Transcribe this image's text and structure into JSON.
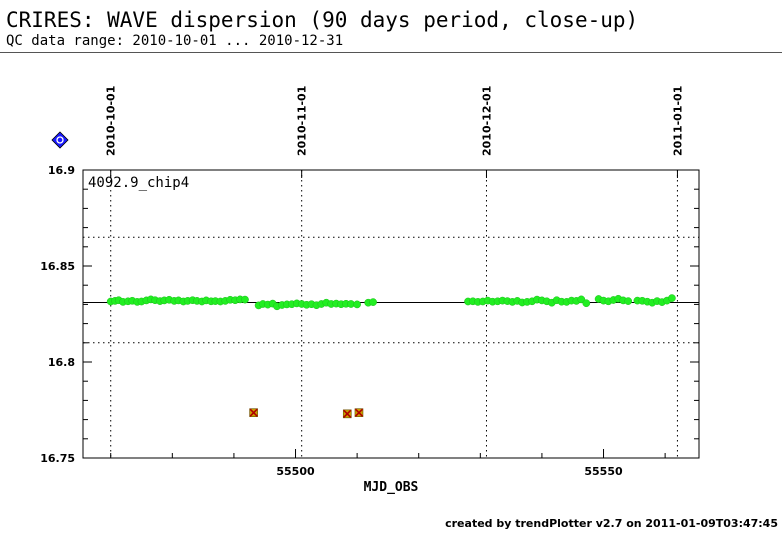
{
  "header": {
    "title": "CRIRES: WAVE dispersion (90 days period, close-up)",
    "subtitle": "QC data range: 2010-10-01 ... 2010-12-31"
  },
  "footer": {
    "credit": "created by trendPlotter v2.7 on 2011-01-09T03:47:45"
  },
  "chart_data": {
    "type": "scatter",
    "title": "",
    "xlabel": "MJD_OBS",
    "ylabel": "",
    "panel_label": "4092.9_chip4",
    "xlim": [
      55465.5,
      55565.5
    ],
    "ylim": [
      16.75,
      16.9
    ],
    "x_ticks": [
      55500,
      55550
    ],
    "x_tick_labels": [
      "55500",
      "55550"
    ],
    "y_ticks": [
      16.75,
      16.8,
      16.85,
      16.9
    ],
    "y_tick_labels": [
      "16.75",
      "16.8",
      "16.85",
      "16.9"
    ],
    "top_date_ticks": [
      {
        "label": "2010-10-01",
        "mjd": 55470
      },
      {
        "label": "2010-11-01",
        "mjd": 55501
      },
      {
        "label": "2010-12-01",
        "mjd": 55531
      },
      {
        "label": "2011-01-01",
        "mjd": 55562
      }
    ],
    "reference_line": 16.831,
    "tolerance_lines": [
      16.865,
      16.81
    ],
    "legend_symbol": "blue diamond marker",
    "colors": {
      "good_points": "#22ee22",
      "outliers_fill": "#c8a000",
      "outliers_cross": "#b00000",
      "legend_marker": "#1a1aff"
    },
    "series": [
      {
        "points": [
          [
            55470.0,
            16.8315
          ],
          [
            55470.7,
            16.8318
          ],
          [
            55471.3,
            16.8322
          ],
          [
            55472.0,
            16.8313
          ],
          [
            55472.8,
            16.8316
          ],
          [
            55473.5,
            16.8319
          ],
          [
            55474.3,
            16.8313
          ],
          [
            55475.0,
            16.8315
          ],
          [
            55475.8,
            16.8321
          ],
          [
            55476.5,
            16.8326
          ],
          [
            55477.2,
            16.8322
          ],
          [
            55478.0,
            16.8317
          ],
          [
            55478.7,
            16.8321
          ],
          [
            55479.5,
            16.8324
          ],
          [
            55480.3,
            16.8318
          ],
          [
            55481.0,
            16.8321
          ],
          [
            55481.8,
            16.8315
          ],
          [
            55482.5,
            16.8318
          ],
          [
            55483.3,
            16.8322
          ],
          [
            55484.0,
            16.8318
          ],
          [
            55484.8,
            16.8315
          ],
          [
            55485.5,
            16.8321
          ],
          [
            55486.3,
            16.8316
          ],
          [
            55487.0,
            16.8317
          ],
          [
            55487.8,
            16.8315
          ],
          [
            55488.6,
            16.8318
          ],
          [
            55489.4,
            16.8324
          ],
          [
            55490.2,
            16.8322
          ],
          [
            55491.0,
            16.8326
          ],
          [
            55491.8,
            16.8325
          ],
          [
            55494.0,
            16.8295
          ],
          [
            55494.7,
            16.8302
          ],
          [
            55495.5,
            16.8299
          ],
          [
            55496.3,
            16.8304
          ],
          [
            55497.0,
            16.829
          ],
          [
            55497.8,
            16.8297
          ],
          [
            55498.6,
            16.83
          ],
          [
            55499.4,
            16.8301
          ],
          [
            55500.2,
            16.8305
          ],
          [
            55501.0,
            16.8302
          ],
          [
            55501.8,
            16.8298
          ],
          [
            55502.6,
            16.8301
          ],
          [
            55503.4,
            16.8296
          ],
          [
            55504.2,
            16.8302
          ],
          [
            55505.0,
            16.8309
          ],
          [
            55505.8,
            16.8302
          ],
          [
            55506.6,
            16.8304
          ],
          [
            55507.4,
            16.8301
          ],
          [
            55508.2,
            16.8303
          ],
          [
            55509.0,
            16.8302
          ],
          [
            55510.0,
            16.83
          ],
          [
            55511.8,
            16.8309
          ],
          [
            55512.6,
            16.8312
          ],
          [
            55528.0,
            16.8315
          ],
          [
            55528.8,
            16.8316
          ],
          [
            55529.6,
            16.8313
          ],
          [
            55530.4,
            16.8315
          ],
          [
            55531.2,
            16.832
          ],
          [
            55532.0,
            16.8314
          ],
          [
            55532.8,
            16.8316
          ],
          [
            55533.6,
            16.832
          ],
          [
            55534.4,
            16.8317
          ],
          [
            55535.2,
            16.8313
          ],
          [
            55536.0,
            16.8318
          ],
          [
            55536.8,
            16.831
          ],
          [
            55537.6,
            16.8313
          ],
          [
            55538.4,
            16.8316
          ],
          [
            55539.2,
            16.8325
          ],
          [
            55540.0,
            16.8321
          ],
          [
            55540.8,
            16.8316
          ],
          [
            55541.6,
            16.8309
          ],
          [
            55542.4,
            16.8322
          ],
          [
            55543.2,
            16.8314
          ],
          [
            55544.0,
            16.8313
          ],
          [
            55544.8,
            16.832
          ],
          [
            55545.6,
            16.8318
          ],
          [
            55546.4,
            16.8326
          ],
          [
            55547.2,
            16.8306
          ],
          [
            55549.2,
            16.8328
          ],
          [
            55550.0,
            16.832
          ],
          [
            55550.8,
            16.8316
          ],
          [
            55551.6,
            16.8323
          ],
          [
            55552.4,
            16.8329
          ],
          [
            55553.2,
            16.8321
          ],
          [
            55554.0,
            16.8317
          ],
          [
            55555.5,
            16.832
          ],
          [
            55556.3,
            16.8319
          ],
          [
            55557.1,
            16.8314
          ],
          [
            55557.9,
            16.8309
          ],
          [
            55558.7,
            16.8317
          ],
          [
            55559.5,
            16.8312
          ],
          [
            55560.3,
            16.832
          ],
          [
            55561.1,
            16.8333
          ]
        ]
      },
      {
        "points": [
          [
            55493.2,
            16.7736
          ],
          [
            55508.4,
            16.773
          ],
          [
            55510.3,
            16.7736
          ]
        ]
      }
    ]
  }
}
